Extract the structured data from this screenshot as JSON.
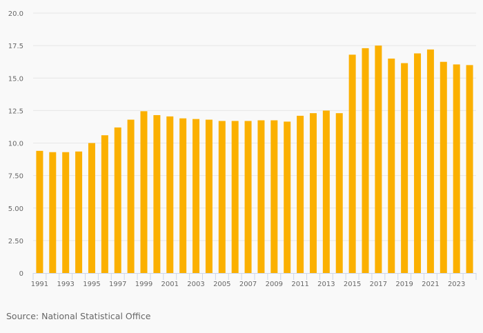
{
  "chart_data": {
    "type": "bar",
    "categories": [
      "1991",
      "1992",
      "1993",
      "1994",
      "1995",
      "1996",
      "1997",
      "1998",
      "1999",
      "2000",
      "2001",
      "2002",
      "2003",
      "2004",
      "2005",
      "2006",
      "2007",
      "2008",
      "2009",
      "2010",
      "2011",
      "2012",
      "2013",
      "2014",
      "2015",
      "2016",
      "2017",
      "2018",
      "2019",
      "2020",
      "2021",
      "2022",
      "2023",
      "2024"
    ],
    "values": [
      9.4,
      9.3,
      9.3,
      9.35,
      10.0,
      10.6,
      11.2,
      11.8,
      12.45,
      12.15,
      12.05,
      11.9,
      11.85,
      11.8,
      11.7,
      11.7,
      11.7,
      11.75,
      11.75,
      11.65,
      12.1,
      12.3,
      12.5,
      12.3,
      16.8,
      17.3,
      17.5,
      16.5,
      16.15,
      16.9,
      17.2,
      16.25,
      16.05,
      16.0
    ],
    "x_tick_labels": [
      "1991",
      "1993",
      "1995",
      "1997",
      "1999",
      "2001",
      "2003",
      "2005",
      "2007",
      "2009",
      "2011",
      "2013",
      "2015",
      "2017",
      "2019",
      "2021",
      "2023"
    ],
    "y_tick_labels": [
      "0",
      "2.50",
      "5.00",
      "7.50",
      "10.0",
      "12.5",
      "15.0",
      "17.5",
      "20.0"
    ],
    "y_ticks": [
      0,
      2.5,
      5,
      7.5,
      10,
      12.5,
      15,
      17.5,
      20
    ],
    "ylim": [
      0,
      20
    ],
    "title": "",
    "xlabel": "",
    "ylabel": "",
    "grid": true,
    "legend": "none",
    "colors": {
      "bar": "#fbb000",
      "grid": "#e6e6e6",
      "axis": "#ccd6eb",
      "tick_text": "#666666"
    }
  },
  "source": "Source: National Statistical Office"
}
